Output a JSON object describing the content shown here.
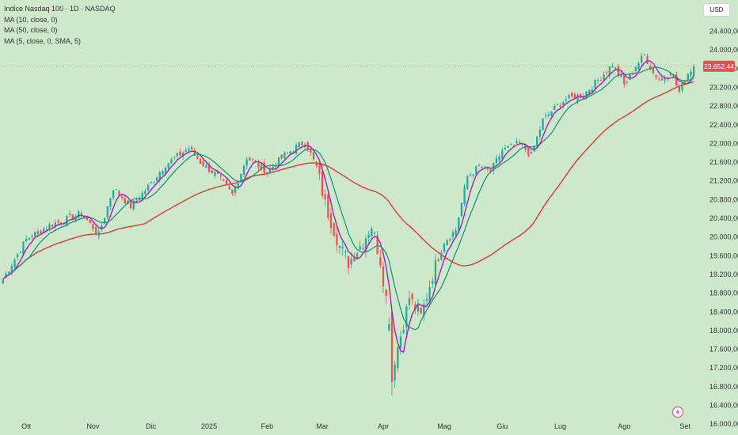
{
  "legend": {
    "title": "Indice Nasdaq 100 · 1D · NASDAQ",
    "ma10": "MA (10, close, 0)",
    "ma50": "MA (50, close, 0)",
    "ma5": "MA (5, close, 0, SMA, 5)"
  },
  "currency": "USD",
  "colors": {
    "background": "#cde8cb",
    "up": "#26a69a",
    "down": "#ef5350",
    "ma5": "#9c27b0",
    "ma10": "#0f8f6f",
    "ma50": "#e53935",
    "price_badge": "#ef4d4d"
  },
  "chart_data": {
    "type": "candlestick",
    "title": "Indice Nasdaq 100 · 1D · NASDAQ",
    "ylim": [
      15800,
      24900
    ],
    "y_ticks": [
      "16.000,00",
      "16.400,00",
      "16.800,00",
      "17.200,00",
      "17.600,00",
      "18.000,00",
      "18.400,00",
      "18.800,00",
      "19.200,00",
      "19.600,00",
      "20.000,00",
      "20.400,00",
      "20.800,00",
      "21.200,00",
      "21.600,00",
      "22.000,00",
      "22.400,00",
      "22.800,00",
      "23.200,00",
      "23.600,00",
      "24.000,00",
      "24.400,00"
    ],
    "y_tick_values": [
      16000,
      16400,
      16800,
      17200,
      17600,
      18000,
      18400,
      18800,
      19200,
      19600,
      20000,
      20400,
      20800,
      21200,
      21600,
      22000,
      22400,
      22800,
      23200,
      23600,
      24000,
      24400
    ],
    "x_ticks": [
      {
        "label": "Ott",
        "index": 8
      },
      {
        "label": "Nov",
        "index": 31
      },
      {
        "label": "Dic",
        "index": 51
      },
      {
        "label": "2025",
        "index": 71
      },
      {
        "label": "Feb",
        "index": 91
      },
      {
        "label": "Mar",
        "index": 110
      },
      {
        "label": "Apr",
        "index": 131
      },
      {
        "label": "Mag",
        "index": 152
      },
      {
        "label": "Giu",
        "index": 172
      },
      {
        "label": "Lug",
        "index": 192
      },
      {
        "label": "Ago",
        "index": 214
      },
      {
        "label": "Set",
        "index": 235
      }
    ],
    "last_price": 23652.44,
    "last_price_label": "23.652,44",
    "anchors": [
      [
        0,
        19100
      ],
      [
        8,
        19950
      ],
      [
        16,
        20250
      ],
      [
        27,
        20500
      ],
      [
        33,
        20050
      ],
      [
        38,
        21050
      ],
      [
        44,
        20650
      ],
      [
        49,
        21000
      ],
      [
        56,
        21550
      ],
      [
        64,
        21900
      ],
      [
        68,
        21600
      ],
      [
        74,
        21300
      ],
      [
        79,
        20900
      ],
      [
        84,
        21700
      ],
      [
        91,
        21400
      ],
      [
        97,
        21750
      ],
      [
        104,
        22050
      ],
      [
        108,
        21500
      ],
      [
        111,
        20700
      ],
      [
        116,
        19800
      ],
      [
        119,
        19450
      ],
      [
        124,
        19900
      ],
      [
        127,
        20250
      ],
      [
        130,
        19500
      ],
      [
        132,
        18700
      ],
      [
        135,
        17400
      ],
      [
        137,
        17900
      ],
      [
        140,
        18700
      ],
      [
        144,
        18300
      ],
      [
        148,
        19200
      ],
      [
        152,
        19900
      ],
      [
        156,
        20150
      ],
      [
        160,
        21300
      ],
      [
        164,
        21500
      ],
      [
        168,
        21400
      ],
      [
        172,
        21850
      ],
      [
        178,
        22000
      ],
      [
        182,
        21750
      ],
      [
        186,
        22500
      ],
      [
        190,
        22750
      ],
      [
        194,
        22950
      ],
      [
        200,
        23050
      ],
      [
        205,
        23350
      ],
      [
        210,
        23700
      ],
      [
        214,
        23250
      ],
      [
        218,
        23650
      ],
      [
        221,
        23900
      ],
      [
        224,
        23500
      ],
      [
        227,
        23350
      ],
      [
        230,
        23550
      ],
      [
        233,
        23100
      ],
      [
        236,
        23500
      ],
      [
        238,
        23652
      ]
    ],
    "series": [
      {
        "name": "MA (5, close, 0, SMA, 5)",
        "window": 5
      },
      {
        "name": "MA (10, close, 0)",
        "window": 10
      },
      {
        "name": "MA (50, close, 0)",
        "window": 50
      }
    ]
  }
}
